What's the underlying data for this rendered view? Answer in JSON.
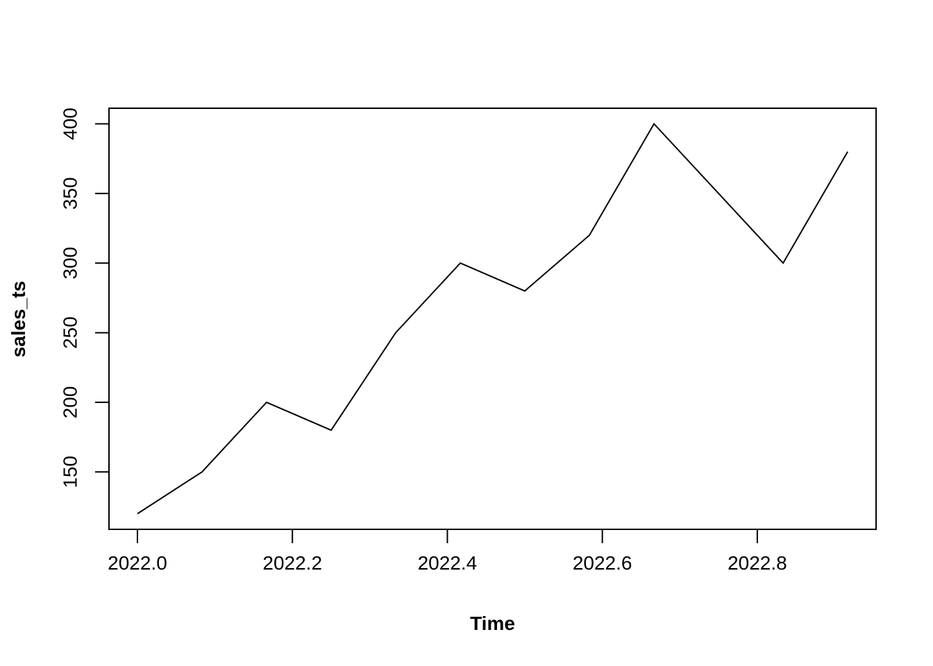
{
  "figure": {
    "background_color": "#FFFFFF",
    "axis_color": "#000000"
  },
  "chart_data": {
    "type": "line",
    "title": "",
    "xlabel": "Time",
    "ylabel": "sales_ts",
    "series": [
      {
        "name": "sales_ts",
        "x": [
          2022.0,
          2022.0833,
          2022.1667,
          2022.25,
          2022.3333,
          2022.4167,
          2022.5,
          2022.5833,
          2022.6667,
          2022.75,
          2022.8333,
          2022.9167
        ],
        "values": [
          120,
          150,
          200,
          180,
          250,
          300,
          280,
          320,
          400,
          350,
          300,
          380
        ],
        "color": "#000000"
      }
    ],
    "xticks": [
      2022.0,
      2022.2,
      2022.4,
      2022.6,
      2022.8
    ],
    "xtick_labels": [
      "2022.0",
      "2022.2",
      "2022.4",
      "2022.6",
      "2022.8"
    ],
    "yticks": [
      150,
      200,
      250,
      300,
      350,
      400
    ],
    "ytick_labels": [
      "150",
      "200",
      "250",
      "300",
      "350",
      "400"
    ],
    "xlim": [
      2021.9633,
      2022.9533
    ],
    "ylim": [
      108.8,
      411.2
    ],
    "grid": false,
    "legend": null,
    "frame_box": true
  }
}
